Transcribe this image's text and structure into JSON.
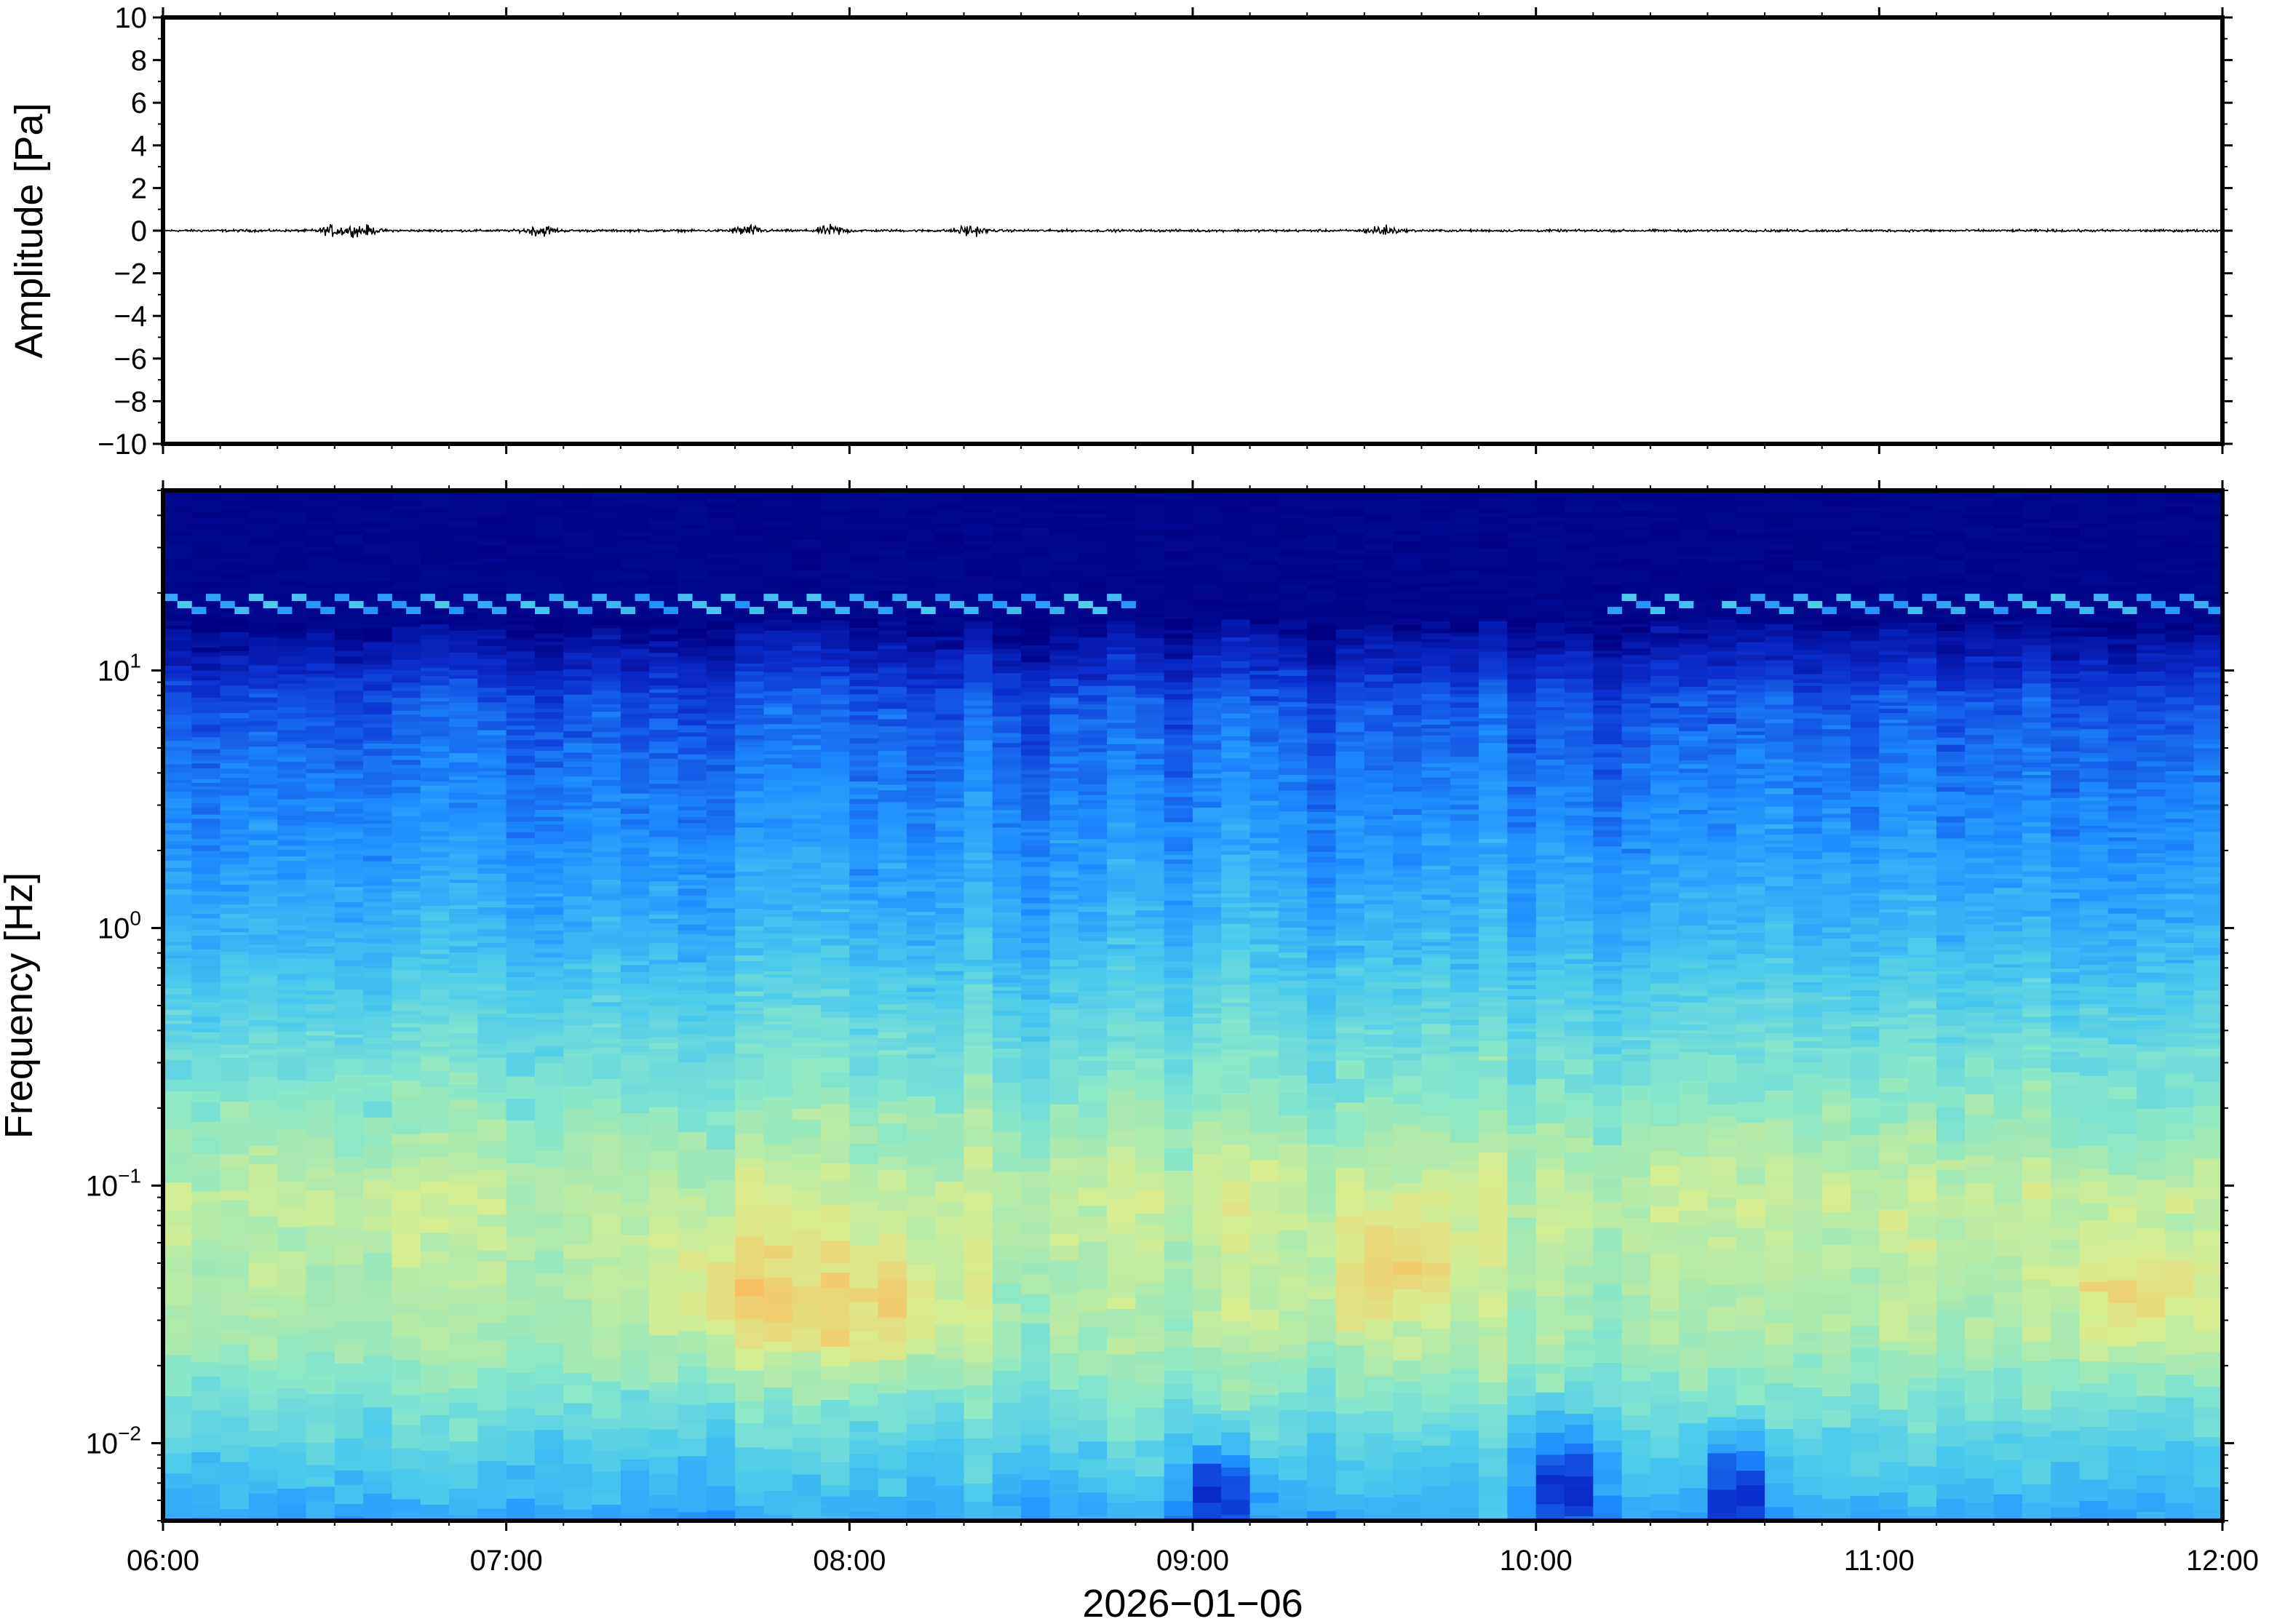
{
  "chart_data": [
    {
      "type": "line",
      "ylabel": "Amplitude [Pa]",
      "ylim": [
        -10,
        10
      ],
      "yticks": [
        10,
        8,
        6,
        4,
        2,
        0,
        -2,
        -4,
        -6,
        -8,
        -10
      ],
      "ytick_labels": [
        "10",
        "8",
        "6",
        "4",
        "2",
        "0",
        "−2",
        "−4",
        "−6",
        "−8",
        "−10"
      ],
      "xlim": [
        "06:00",
        "12:00"
      ],
      "baseline": 0,
      "peak_abs_amplitude": 0.6,
      "bursts_hours": [
        6.5,
        6.58,
        7.1,
        7.7,
        7.95,
        8.35,
        9.55
      ],
      "series_color": "#000000"
    },
    {
      "type": "heatmap",
      "ylabel": "Frequency [Hz]",
      "xlabel": "2026−01−06",
      "yscale": "log",
      "ylim": [
        0.005,
        50
      ],
      "yticks": [
        {
          "value": 10,
          "base": "10",
          "exp": "1"
        },
        {
          "value": 1,
          "base": "10",
          "exp": "0"
        },
        {
          "value": 0.1,
          "base": "10",
          "exp": "−1"
        },
        {
          "value": 0.01,
          "base": "10",
          "exp": "−2"
        }
      ],
      "xticks": [
        "06:00",
        "07:00",
        "08:00",
        "09:00",
        "10:00",
        "11:00",
        "12:00"
      ],
      "colormap": [
        "#000080",
        "#0a2fd0",
        "#1f8cff",
        "#49c8f0",
        "#8ae8c8",
        "#d8ee90",
        "#f8c466",
        "#f49440"
      ],
      "tonal_line_hz": 18,
      "tonal_line_gaps_hours": [
        [
          8.8,
          10.2
        ],
        [
          10.45,
          10.5
        ]
      ],
      "hot_spots": [
        {
          "time": "07:40",
          "freq_hz": 0.04
        },
        {
          "time": "08:05",
          "freq_hz": 0.035
        },
        {
          "time": "09:35",
          "freq_hz": 0.05
        },
        {
          "time": "11:45",
          "freq_hz": 0.04
        }
      ],
      "cool_spots": [
        {
          "time": "09:05",
          "freq_hz": 0.007
        },
        {
          "time": "10:05",
          "freq_hz": 0.008
        },
        {
          "time": "10:35",
          "freq_hz": 0.007
        }
      ]
    }
  ]
}
